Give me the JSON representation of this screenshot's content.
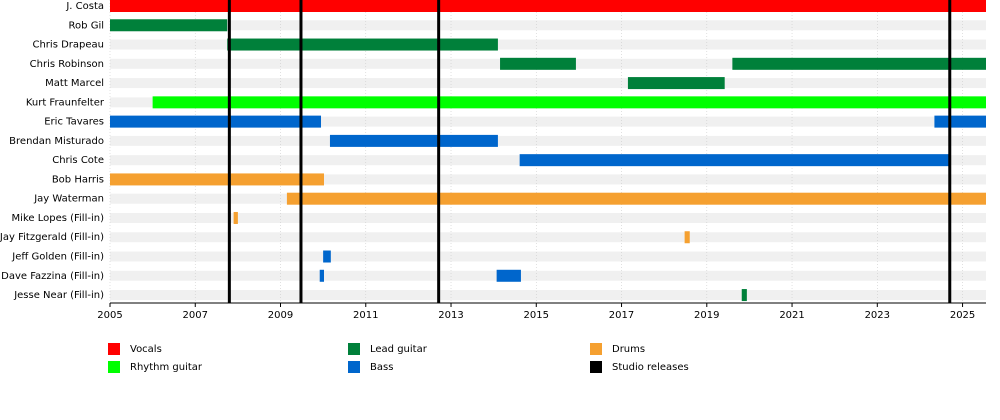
{
  "chart_data": {
    "type": "timeline",
    "series": [
      {
        "name": "Vocals",
        "color": "#ff0000"
      },
      {
        "name": "Lead guitar",
        "color": "#00803a"
      },
      {
        "name": "Drums",
        "color": "#f5a030"
      },
      {
        "name": "Rhythm guitar",
        "color": "#00ff00"
      },
      {
        "name": "Bass",
        "color": "#0066cc"
      }
    ],
    "releases": {
      "name": "Studio releases",
      "color": "#000000",
      "values": [
        2007.8,
        2009.48,
        2012.71,
        2024.7
      ]
    },
    "members": [
      {
        "name": "J. Costa",
        "periods": [
          {
            "role": "Vocals",
            "start": 2005,
            "end": 2025.55
          }
        ]
      },
      {
        "name": "Rob Gil",
        "periods": [
          {
            "role": "Lead guitar",
            "start": 2005,
            "end": 2007.75
          }
        ]
      },
      {
        "name": "Chris Drapeau",
        "periods": [
          {
            "role": "Lead guitar",
            "start": 2007.75,
            "end": 2014.1
          }
        ]
      },
      {
        "name": "Chris Robinson",
        "periods": [
          {
            "role": "Lead guitar",
            "start": 2014.15,
            "end": 2015.93
          },
          {
            "role": "Lead guitar",
            "start": 2019.6,
            "end": 2025.55
          }
        ]
      },
      {
        "name": "Matt Marcel",
        "periods": [
          {
            "role": "Lead guitar",
            "start": 2017.15,
            "end": 2019.42
          }
        ]
      },
      {
        "name": "Kurt Fraunfelter",
        "periods": [
          {
            "role": "Rhythm guitar",
            "start": 2006,
            "end": 2025.55
          }
        ]
      },
      {
        "name": "Eric Tavares",
        "periods": [
          {
            "role": "Bass",
            "start": 2005,
            "end": 2009.95
          },
          {
            "role": "Bass",
            "start": 2024.34,
            "end": 2025.55
          }
        ]
      },
      {
        "name": "Brendan Misturado",
        "periods": [
          {
            "role": "Bass",
            "start": 2010.16,
            "end": 2014.1
          }
        ]
      },
      {
        "name": "Chris Cote",
        "periods": [
          {
            "role": "Bass",
            "start": 2014.61,
            "end": 2024.7
          }
        ]
      },
      {
        "name": "Bob Harris",
        "periods": [
          {
            "role": "Drums",
            "start": 2005,
            "end": 2010.02
          }
        ]
      },
      {
        "name": "Jay Waterman",
        "periods": [
          {
            "role": "Drums",
            "start": 2009.15,
            "end": 2025.55
          }
        ]
      },
      {
        "name": "Mike Lopes (Fill-in)",
        "periods": [
          {
            "role": "Drums",
            "start": 2007.9,
            "end": 2008.0
          }
        ]
      },
      {
        "name": "Jay Fitzgerald (Fill-in)",
        "periods": [
          {
            "role": "Drums",
            "start": 2018.48,
            "end": 2018.6
          }
        ]
      },
      {
        "name": "Jeff Golden (Fill-in)",
        "periods": [
          {
            "role": "Bass",
            "start": 2010.0,
            "end": 2010.18
          }
        ]
      },
      {
        "name": "Dave Fazzina (Fill-in)",
        "periods": [
          {
            "role": "Bass",
            "start": 2009.92,
            "end": 2010.02
          },
          {
            "role": "Bass",
            "start": 2014.07,
            "end": 2014.64
          }
        ]
      },
      {
        "name": "Jesse Near (Fill-in)",
        "periods": [
          {
            "role": "Lead guitar",
            "start": 2019.82,
            "end": 2019.94
          }
        ]
      }
    ],
    "xlim": [
      2005,
      2025.55
    ],
    "xticks": [
      2005,
      2007,
      2009,
      2011,
      2013,
      2015,
      2017,
      2019,
      2021,
      2023,
      2025
    ]
  }
}
